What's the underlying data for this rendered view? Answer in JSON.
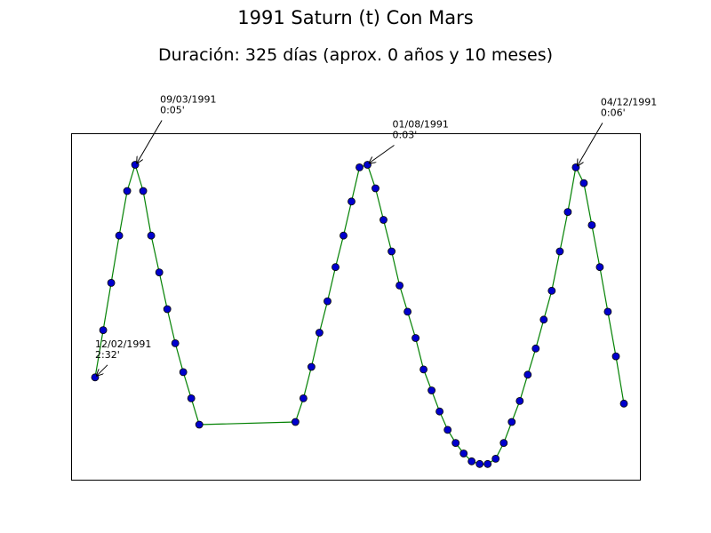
{
  "title": "1991 Saturn (t) Con Mars",
  "subtitle": "Duración: 325 días (aprox. 0 años y 10 meses)",
  "chart_data": {
    "type": "line",
    "line_color": "#008000",
    "marker_color": "#0000cd",
    "marker_edge": "#000000",
    "grid": false,
    "axes_visible_ticks": false,
    "x": [
      0,
      1,
      2,
      3,
      4,
      5,
      6,
      7,
      8,
      9,
      10,
      11,
      12,
      13,
      25,
      26,
      27,
      28,
      29,
      30,
      31,
      32,
      33,
      34,
      35,
      36,
      37,
      38,
      39,
      40,
      41,
      42,
      43,
      44,
      45,
      46,
      47,
      48,
      49,
      50,
      51,
      52,
      53,
      54,
      55,
      56,
      57,
      58,
      59,
      60,
      61,
      62,
      63,
      64,
      65,
      66
    ],
    "y": [
      2.53,
      2.35,
      2.17,
      1.99,
      1.82,
      1.72,
      1.82,
      1.99,
      2.13,
      2.27,
      2.4,
      2.51,
      2.61,
      2.71,
      2.7,
      2.61,
      2.49,
      2.36,
      2.24,
      2.11,
      1.99,
      1.86,
      1.73,
      1.72,
      1.81,
      1.93,
      2.05,
      2.18,
      2.28,
      2.38,
      2.5,
      2.58,
      2.66,
      2.73,
      2.78,
      2.82,
      2.85,
      2.86,
      2.86,
      2.84,
      2.78,
      2.7,
      2.62,
      2.52,
      2.42,
      2.31,
      2.2,
      2.05,
      1.9,
      1.73,
      1.79,
      1.95,
      2.11,
      2.28,
      2.45,
      2.63
    ],
    "annotations": [
      {
        "point_index": 0,
        "date": "12/02/1991",
        "value": "2:32'"
      },
      {
        "point_index": 5,
        "date": "09/03/1991",
        "value": "0:05'"
      },
      {
        "point_index": 23,
        "date": "01/08/1991",
        "value": "0:03'"
      },
      {
        "point_index": 49,
        "date": "04/12/1991",
        "value": "0:06'"
      }
    ]
  }
}
